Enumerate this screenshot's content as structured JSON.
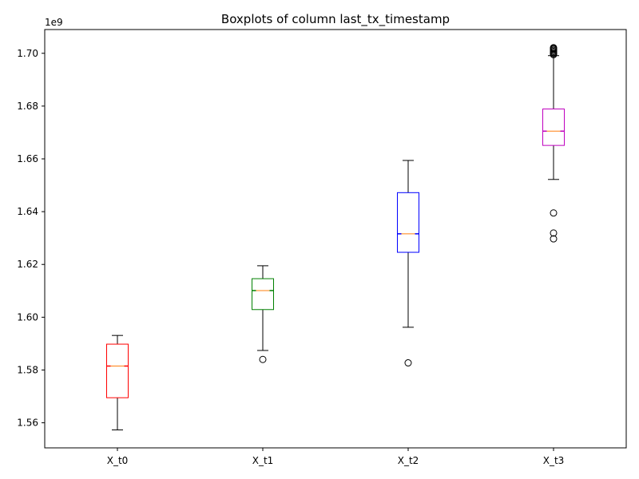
{
  "chart_data": {
    "type": "boxplot",
    "title": "Boxplots of column last_tx_timestamp",
    "xlabel": "",
    "ylabel": "",
    "y_offset_label": "1e9",
    "y_scale": 1000000000,
    "ylim": [
      1.5505,
      1.709
    ],
    "yticks": [
      1.56,
      1.58,
      1.6,
      1.62,
      1.64,
      1.66,
      1.68,
      1.7
    ],
    "ytick_labels": [
      "1.56",
      "1.58",
      "1.60",
      "1.62",
      "1.64",
      "1.66",
      "1.68",
      "1.70"
    ],
    "grid": false,
    "legend": "none",
    "categories": [
      "X_t0",
      "X_t1",
      "X_t2",
      "X_t3"
    ],
    "series": [
      {
        "category": "X_t0",
        "color": "#ff0000",
        "whisker_low": 1.5573,
        "q1": 1.5695,
        "median": 1.5815,
        "q3": 1.5898,
        "whisker_high": 1.5931,
        "outliers": []
      },
      {
        "category": "X_t1",
        "color": "#008000",
        "whisker_low": 1.5874,
        "q1": 1.6029,
        "median": 1.6101,
        "q3": 1.6146,
        "whisker_high": 1.6195,
        "outliers": [
          1.584
        ]
      },
      {
        "category": "X_t2",
        "color": "#0000ff",
        "whisker_low": 1.5962,
        "q1": 1.6246,
        "median": 1.6316,
        "q3": 1.6472,
        "whisker_high": 1.6594,
        "outliers": [
          1.5827
        ]
      },
      {
        "category": "X_t3",
        "color": "#bf00bf",
        "whisker_low": 1.6522,
        "q1": 1.6651,
        "median": 1.6705,
        "q3": 1.6789,
        "whisker_high": 1.6991,
        "outliers": [
          1.6297,
          1.6319,
          1.6395,
          1.6995,
          1.6999,
          1.7003,
          1.7007,
          1.7011,
          1.7015,
          1.7018,
          1.7021
        ]
      }
    ],
    "median_color": "#ff7f0e"
  }
}
